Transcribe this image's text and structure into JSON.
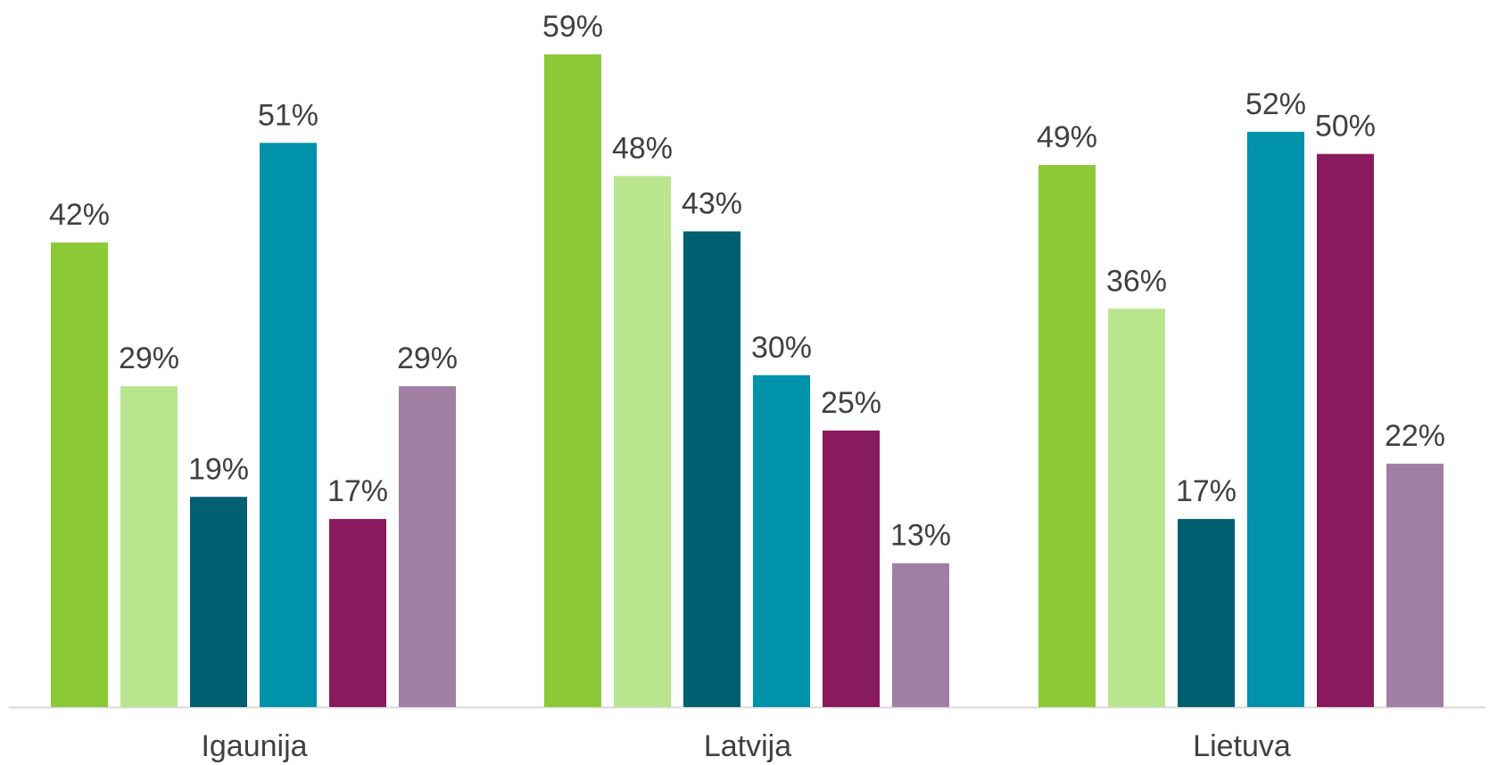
{
  "chart_data": {
    "type": "bar",
    "categories": [
      "Igaunija",
      "Latvija",
      "Lietuva"
    ],
    "series": [
      {
        "color": "#8CC937",
        "values": [
          42,
          59,
          49
        ]
      },
      {
        "color": "#B9E58E",
        "values": [
          29,
          48,
          36
        ]
      },
      {
        "color": "#005F71",
        "values": [
          19,
          43,
          17
        ]
      },
      {
        "color": "#0091AB",
        "values": [
          51,
          30,
          52
        ]
      },
      {
        "color": "#8A1A5E",
        "values": [
          17,
          25,
          50
        ]
      },
      {
        "color": "#A07FA3",
        "values": [
          29,
          13,
          22
        ]
      }
    ],
    "value_suffix": "%",
    "ylim": [
      0,
      63
    ],
    "grid": false,
    "legend": "none",
    "baseline_color": "#D9D9D9",
    "label_color": "#404040"
  }
}
